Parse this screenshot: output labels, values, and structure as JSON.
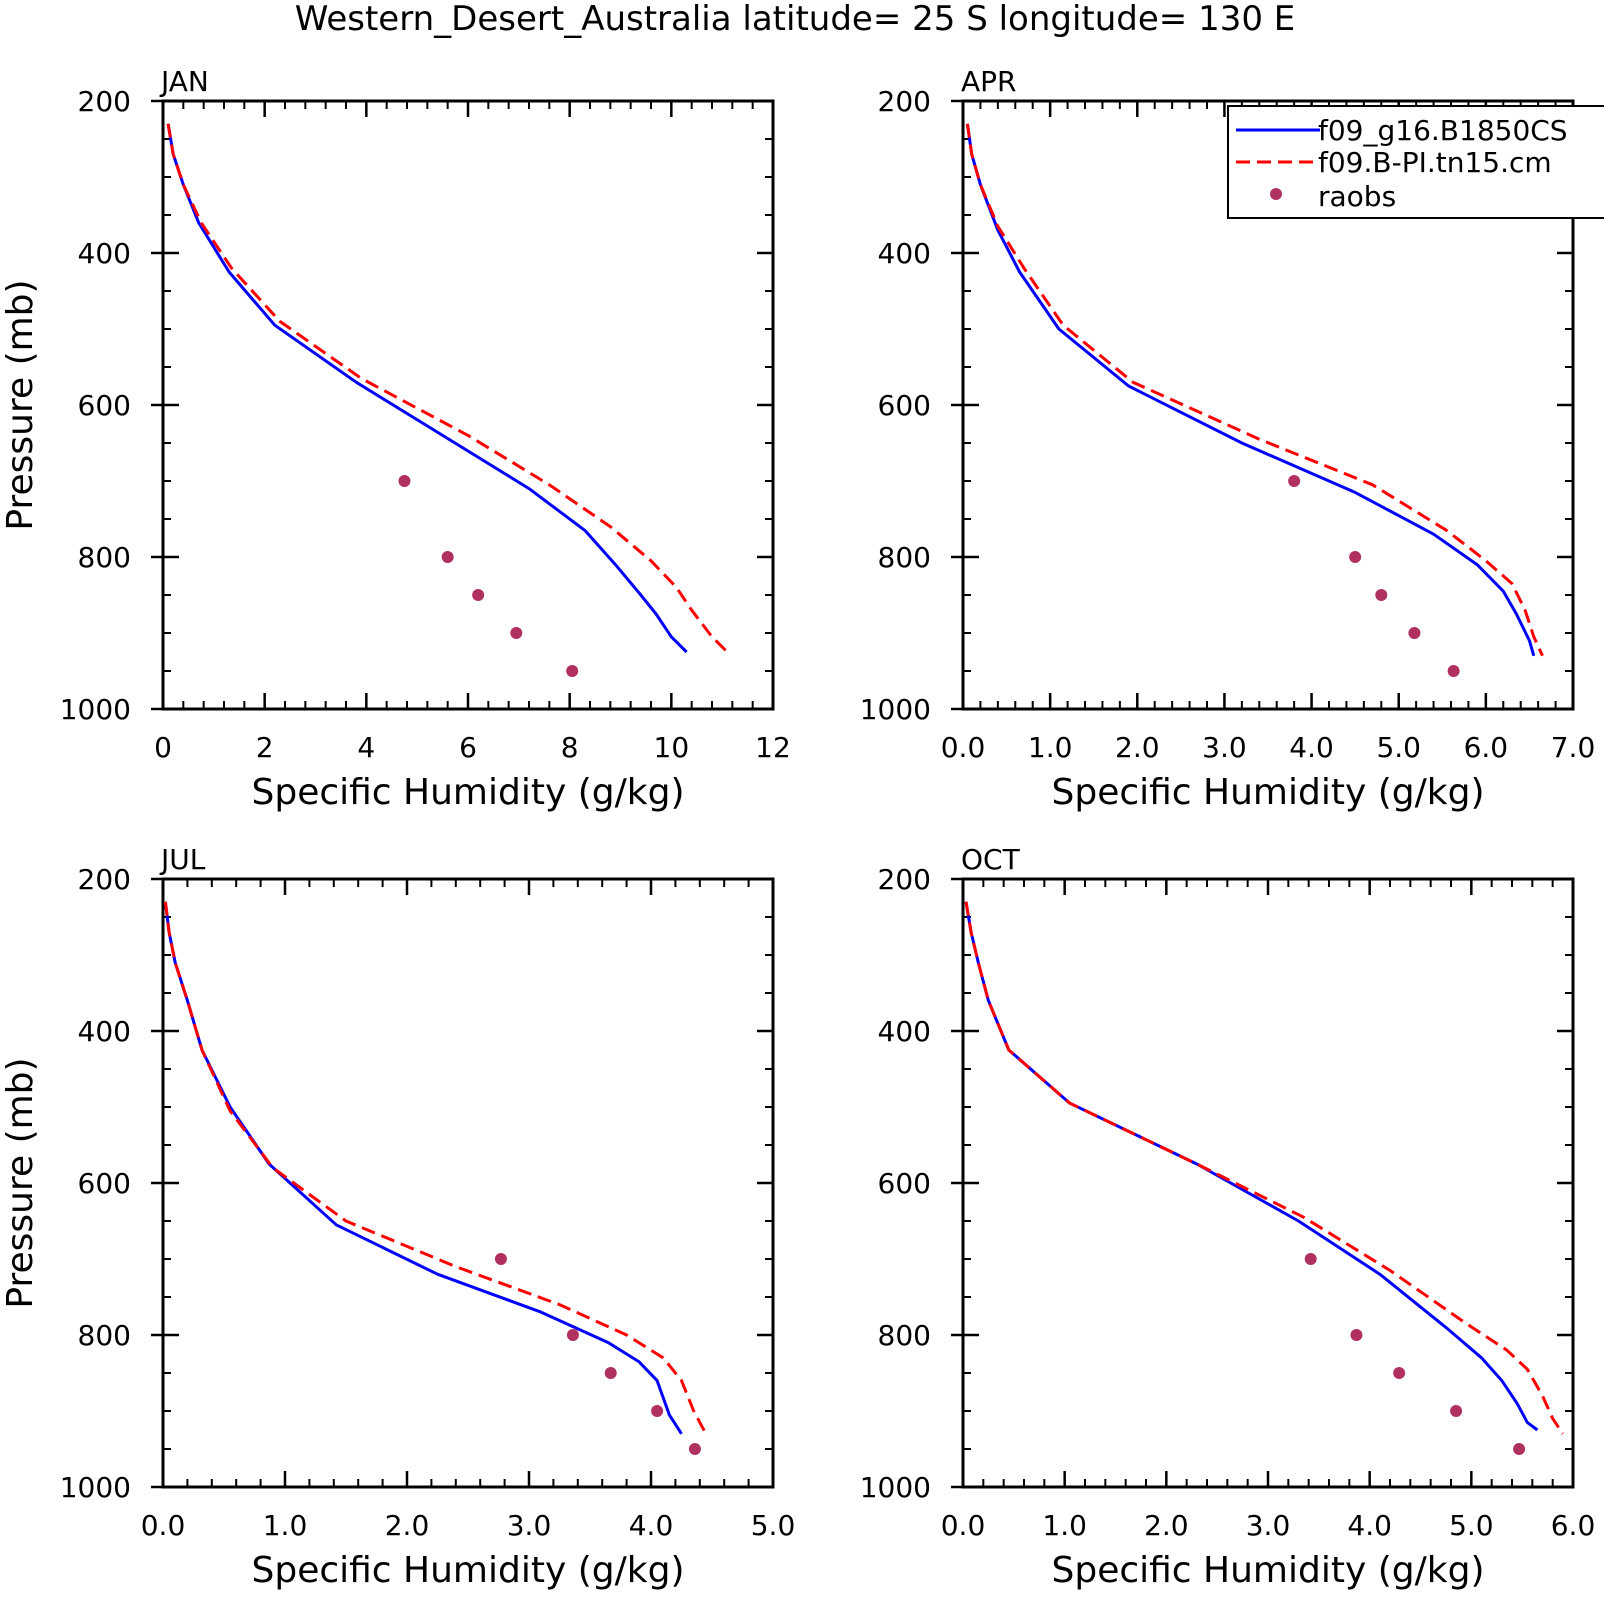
{
  "figure": {
    "title": "Western_Desert_Australia  latitude= 25 S longitude= 130 E"
  },
  "legend": {
    "placement": "top-right",
    "entries": [
      {
        "label": "f09_g16.B1850CS",
        "style": "solid",
        "color": "#0000ff"
      },
      {
        "label": "f09.B-PI.tn15.cm",
        "style": "dashed",
        "color": "#ff0000"
      },
      {
        "label": "raobs",
        "style": "dot",
        "color": "#b03060"
      }
    ]
  },
  "colors": {
    "model1": "#0000ff",
    "model2": "#ff0000",
    "obs": "#b03060"
  },
  "chart_data": [
    {
      "type": "line",
      "panel_label": "JAN",
      "xlabel": "Specific Humidity (g/kg)",
      "ylabel": "Pressure (mb)",
      "xlim": [
        0,
        12
      ],
      "ylim": [
        1000,
        200
      ],
      "y_reversed": true,
      "xticks": [
        0,
        2,
        4,
        6,
        8,
        10,
        12
      ],
      "xtick_labels": [
        "0",
        "2",
        "4",
        "6",
        "8",
        "10",
        "12"
      ],
      "xminor": 0.4,
      "yticks": [
        200,
        400,
        600,
        800,
        1000
      ],
      "ytick_labels": [
        "200",
        "400",
        "600",
        "800",
        "1000"
      ],
      "yminor": 50,
      "series": [
        {
          "name": "f09_g16.B1850CS",
          "style": "solid",
          "x": [
            0.1,
            0.2,
            0.4,
            0.7,
            1.3,
            2.2,
            3.8,
            5.5,
            7.2,
            8.3,
            8.9,
            9.4,
            9.7,
            10.0,
            10.3
          ],
          "y": [
            230,
            270,
            310,
            360,
            425,
            495,
            570,
            640,
            710,
            765,
            810,
            850,
            875,
            905,
            925
          ]
        },
        {
          "name": "f09.B-PI.tn15.cm",
          "style": "dashed",
          "x": [
            0.1,
            0.2,
            0.4,
            0.75,
            1.35,
            2.3,
            3.9,
            6.0,
            7.6,
            8.8,
            9.6,
            10.1,
            10.4,
            10.8,
            11.1
          ],
          "y": [
            230,
            270,
            310,
            360,
            420,
            490,
            565,
            640,
            705,
            760,
            805,
            840,
            870,
            905,
            925
          ]
        },
        {
          "name": "raobs",
          "style": "dot",
          "x": [
            4.75,
            5.6,
            6.2,
            6.95,
            8.05
          ],
          "y": [
            700,
            800,
            850,
            900,
            950
          ]
        }
      ]
    },
    {
      "type": "line",
      "panel_label": "APR",
      "xlabel": "Specific Humidity (g/kg)",
      "ylabel": "",
      "xlim": [
        0,
        7
      ],
      "ylim": [
        1000,
        200
      ],
      "y_reversed": true,
      "xticks": [
        0,
        1,
        2,
        3,
        4,
        5,
        6,
        7
      ],
      "xtick_labels": [
        "0.0",
        "1.0",
        "2.0",
        "3.0",
        "4.0",
        "5.0",
        "6.0",
        "7.0"
      ],
      "xminor": 0.2,
      "yticks": [
        200,
        400,
        600,
        800,
        1000
      ],
      "ytick_labels": [
        "200",
        "400",
        "600",
        "800",
        "1000"
      ],
      "yminor": 50,
      "series": [
        {
          "name": "f09_g16.B1850CS",
          "style": "solid",
          "x": [
            0.05,
            0.1,
            0.2,
            0.4,
            0.65,
            1.1,
            1.9,
            3.2,
            4.5,
            5.4,
            5.9,
            6.2,
            6.35,
            6.5,
            6.55
          ],
          "y": [
            230,
            270,
            310,
            370,
            425,
            500,
            575,
            650,
            715,
            770,
            810,
            845,
            875,
            910,
            930
          ]
        },
        {
          "name": "f09.B-PI.tn15.cm",
          "style": "dashed",
          "x": [
            0.05,
            0.1,
            0.2,
            0.4,
            0.7,
            1.15,
            1.95,
            3.4,
            4.7,
            5.55,
            6.0,
            6.3,
            6.45,
            6.55,
            6.65
          ],
          "y": [
            230,
            270,
            310,
            365,
            420,
            495,
            570,
            645,
            705,
            765,
            805,
            835,
            870,
            905,
            930
          ]
        },
        {
          "name": "raobs",
          "style": "dot",
          "x": [
            3.8,
            4.5,
            4.8,
            5.18,
            5.63
          ],
          "y": [
            700,
            800,
            850,
            900,
            950
          ]
        }
      ]
    },
    {
      "type": "line",
      "panel_label": "JUL",
      "xlabel": "Specific Humidity (g/kg)",
      "ylabel": "Pressure (mb)",
      "xlim": [
        0,
        5
      ],
      "ylim": [
        1000,
        200
      ],
      "y_reversed": true,
      "xticks": [
        0,
        1,
        2,
        3,
        4,
        5
      ],
      "xtick_labels": [
        "0.0",
        "1.0",
        "2.0",
        "3.0",
        "4.0",
        "5.0"
      ],
      "xminor": 0.2,
      "yticks": [
        200,
        400,
        600,
        800,
        1000
      ],
      "ytick_labels": [
        "200",
        "400",
        "600",
        "800",
        "1000"
      ],
      "yminor": 50,
      "series": [
        {
          "name": "f09_g16.B1850CS",
          "style": "solid",
          "x": [
            0.02,
            0.05,
            0.1,
            0.2,
            0.32,
            0.55,
            0.87,
            1.42,
            2.25,
            3.1,
            3.65,
            3.9,
            4.05,
            4.15,
            4.25
          ],
          "y": [
            230,
            270,
            310,
            360,
            425,
            500,
            575,
            655,
            720,
            770,
            810,
            835,
            860,
            905,
            930
          ]
        },
        {
          "name": "f09.B-PI.tn15.cm",
          "style": "dashed",
          "x": [
            0.02,
            0.05,
            0.1,
            0.2,
            0.32,
            0.55,
            0.9,
            1.5,
            2.4,
            3.25,
            3.8,
            4.1,
            4.25,
            4.35,
            4.45
          ],
          "y": [
            230,
            270,
            310,
            360,
            425,
            505,
            580,
            650,
            710,
            760,
            800,
            830,
            860,
            900,
            930
          ]
        },
        {
          "name": "raobs",
          "style": "dot",
          "x": [
            2.77,
            3.36,
            3.67,
            4.05,
            4.36
          ],
          "y": [
            700,
            800,
            850,
            900,
            950
          ]
        }
      ]
    },
    {
      "type": "line",
      "panel_label": "OCT",
      "xlabel": "Specific Humidity (g/kg)",
      "ylabel": "",
      "xlim": [
        0,
        6
      ],
      "ylim": [
        1000,
        200
      ],
      "y_reversed": true,
      "xticks": [
        0,
        1,
        2,
        3,
        4,
        5,
        6
      ],
      "xtick_labels": [
        "0.0",
        "1.0",
        "2.0",
        "3.0",
        "4.0",
        "5.0",
        "6.0"
      ],
      "xminor": 0.2,
      "yticks": [
        200,
        400,
        600,
        800,
        1000
      ],
      "ytick_labels": [
        "200",
        "400",
        "600",
        "800",
        "1000"
      ],
      "yminor": 50,
      "series": [
        {
          "name": "f09_g16.B1850CS",
          "style": "solid",
          "x": [
            0.03,
            0.08,
            0.15,
            0.25,
            0.45,
            1.05,
            2.3,
            3.3,
            4.1,
            4.75,
            5.1,
            5.3,
            5.45,
            5.55,
            5.65
          ],
          "y": [
            230,
            270,
            310,
            360,
            425,
            495,
            575,
            650,
            720,
            790,
            830,
            860,
            890,
            915,
            925
          ]
        },
        {
          "name": "f09.B-PI.tn15.cm",
          "style": "dashed",
          "x": [
            0.03,
            0.08,
            0.15,
            0.25,
            0.45,
            1.05,
            2.3,
            3.35,
            4.2,
            4.95,
            5.35,
            5.55,
            5.7,
            5.8,
            5.9
          ],
          "y": [
            230,
            270,
            310,
            360,
            425,
            495,
            575,
            645,
            715,
            785,
            820,
            845,
            880,
            910,
            930
          ]
        },
        {
          "name": "raobs",
          "style": "dot",
          "x": [
            3.42,
            3.87,
            4.29,
            4.85,
            5.47
          ],
          "y": [
            700,
            800,
            850,
            900,
            950
          ]
        }
      ]
    }
  ]
}
